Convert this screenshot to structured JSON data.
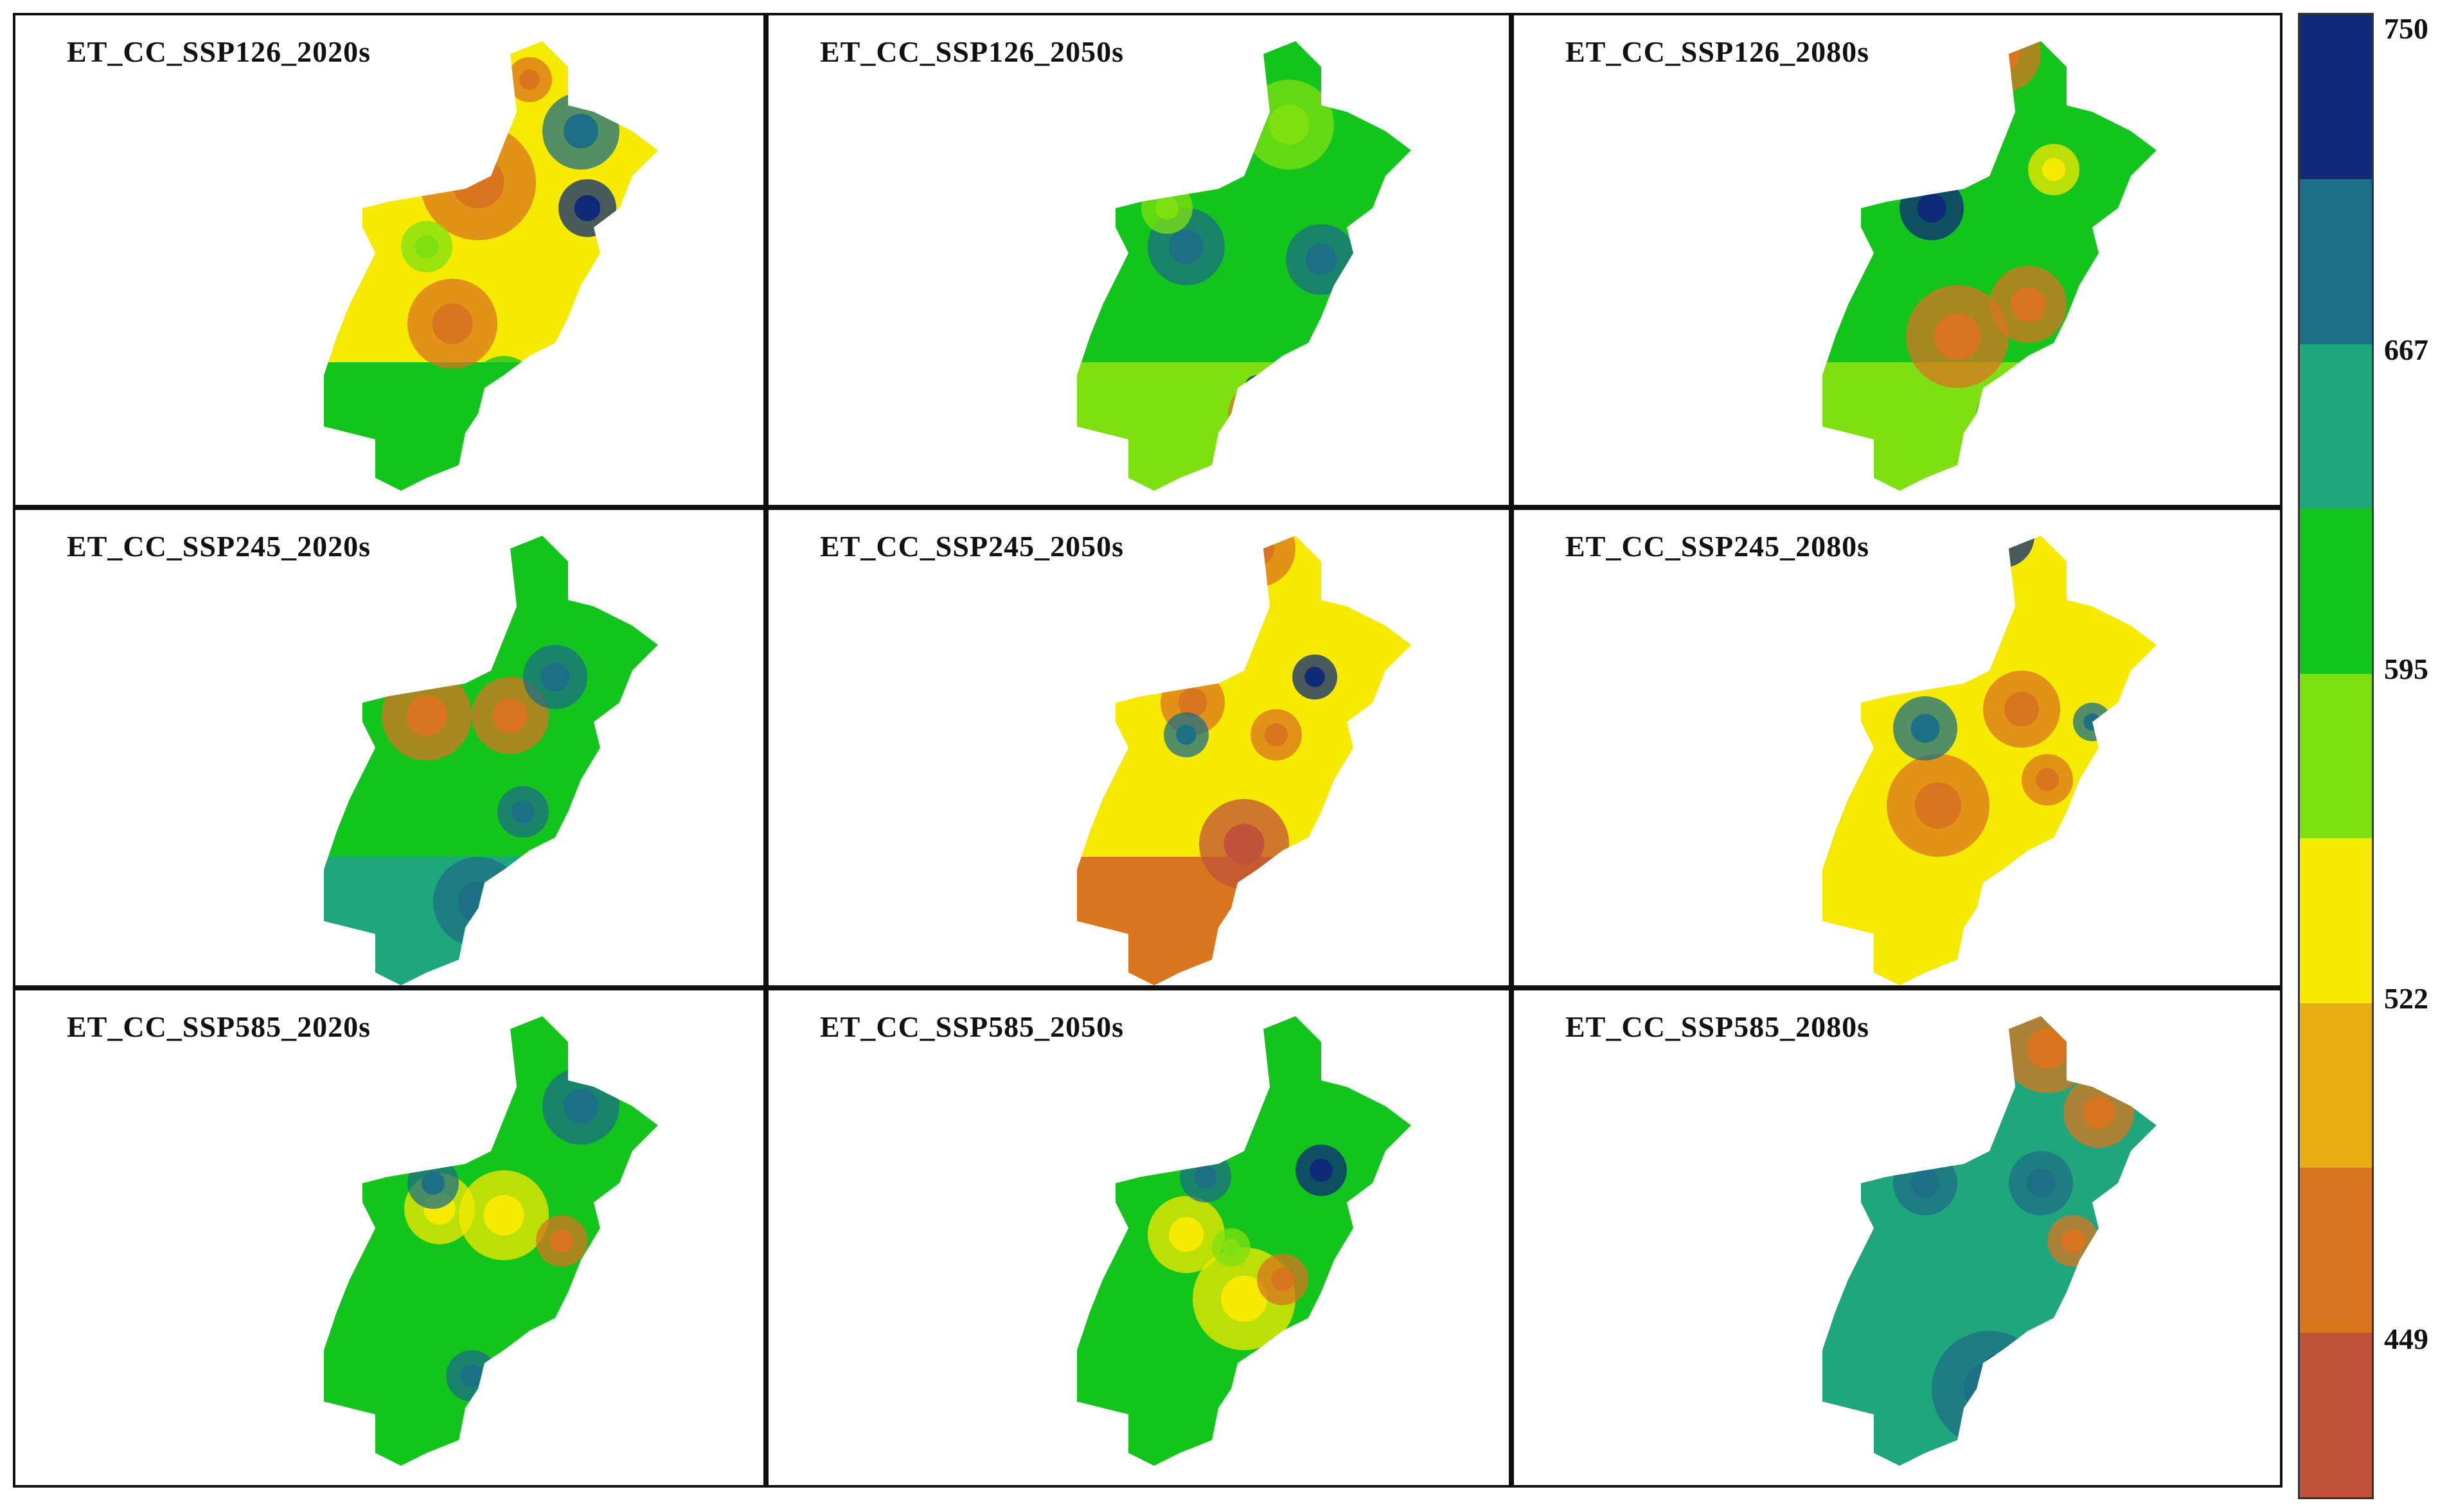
{
  "panels": [
    {
      "title": "ET_CC_SSP126_2020s",
      "base": "yellow",
      "south": "green"
    },
    {
      "title": "ET_CC_SSP126_2050s",
      "base": "green",
      "south": "lightgreen"
    },
    {
      "title": "ET_CC_SSP126_2080s",
      "base": "green",
      "south": "lightgreen"
    },
    {
      "title": "ET_CC_SSP245_2020s",
      "base": "green",
      "south": "teal"
    },
    {
      "title": "ET_CC_SSP245_2050s",
      "base": "yellow",
      "south": "orange"
    },
    {
      "title": "ET_CC_SSP245_2080s",
      "base": "yellow",
      "south": "yellow"
    },
    {
      "title": "ET_CC_SSP585_2020s",
      "base": "green",
      "south": "green"
    },
    {
      "title": "ET_CC_SSP585_2050s",
      "base": "green",
      "south": "green"
    },
    {
      "title": "ET_CC_SSP585_2080s",
      "base": "teal",
      "south": "teal"
    }
  ],
  "legend": {
    "labels": [
      "750",
      "667",
      "595",
      "522",
      "449"
    ],
    "colors": [
      "#0e2a78",
      "#1d6f86",
      "#1fa67d",
      "#13c41d",
      "#7fe011",
      "#f5ea00",
      "#e8ae12",
      "#d9741f",
      "#c2513b"
    ]
  }
}
